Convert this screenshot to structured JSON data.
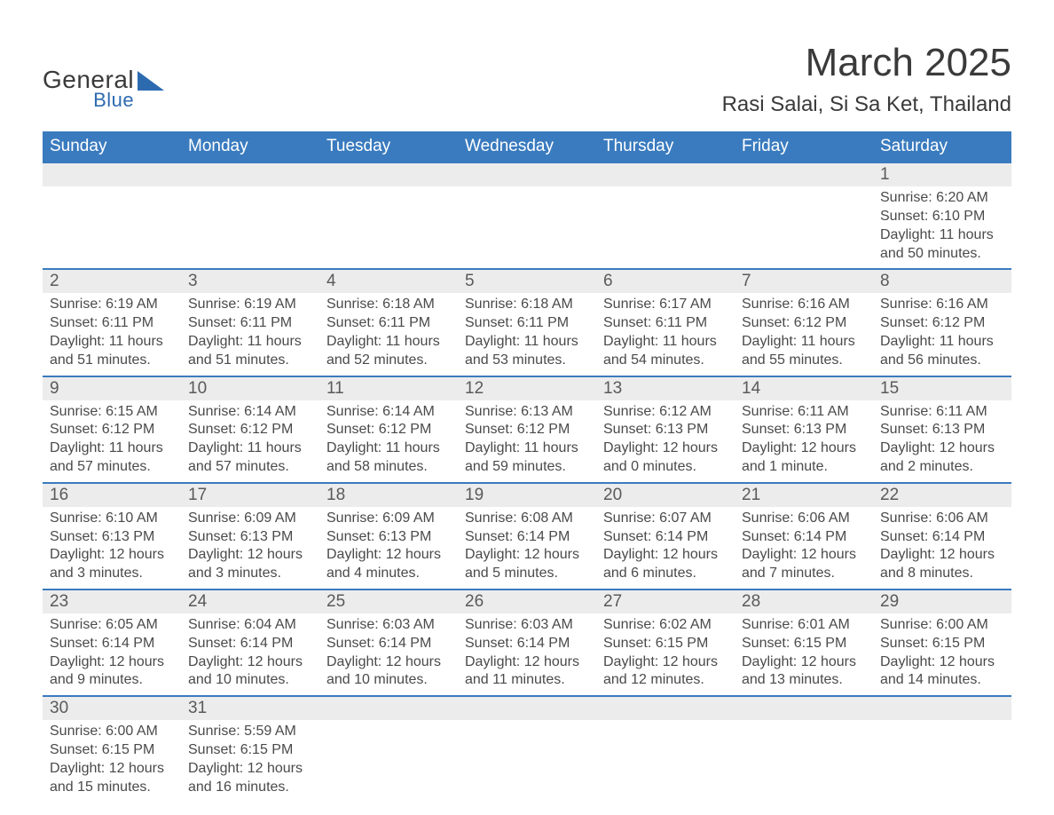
{
  "logo": {
    "text1": "General",
    "text2": "Blue",
    "brand_color": "#2d6bb0"
  },
  "title": {
    "month": "March 2025",
    "location": "Rasi Salai, Si Sa Ket, Thailand"
  },
  "colors": {
    "header_bg": "#3a7bbf",
    "header_text": "#ffffff",
    "daynum_bg": "#ececec",
    "row_border": "#3a7bbf",
    "body_text": "#4a4a4a",
    "page_bg": "#ffffff"
  },
  "typography": {
    "title_fontsize": 44,
    "location_fontsize": 24,
    "header_fontsize": 19,
    "daynum_fontsize": 19,
    "cell_fontsize": 16,
    "font_family": "Arial"
  },
  "weekdays": [
    "Sunday",
    "Monday",
    "Tuesday",
    "Wednesday",
    "Thursday",
    "Friday",
    "Saturday"
  ],
  "weeks": [
    [
      null,
      null,
      null,
      null,
      null,
      null,
      {
        "d": "1",
        "sr": "Sunrise: 6:20 AM",
        "ss": "Sunset: 6:10 PM",
        "dl1": "Daylight: 11 hours",
        "dl2": "and 50 minutes."
      }
    ],
    [
      {
        "d": "2",
        "sr": "Sunrise: 6:19 AM",
        "ss": "Sunset: 6:11 PM",
        "dl1": "Daylight: 11 hours",
        "dl2": "and 51 minutes."
      },
      {
        "d": "3",
        "sr": "Sunrise: 6:19 AM",
        "ss": "Sunset: 6:11 PM",
        "dl1": "Daylight: 11 hours",
        "dl2": "and 51 minutes."
      },
      {
        "d": "4",
        "sr": "Sunrise: 6:18 AM",
        "ss": "Sunset: 6:11 PM",
        "dl1": "Daylight: 11 hours",
        "dl2": "and 52 minutes."
      },
      {
        "d": "5",
        "sr": "Sunrise: 6:18 AM",
        "ss": "Sunset: 6:11 PM",
        "dl1": "Daylight: 11 hours",
        "dl2": "and 53 minutes."
      },
      {
        "d": "6",
        "sr": "Sunrise: 6:17 AM",
        "ss": "Sunset: 6:11 PM",
        "dl1": "Daylight: 11 hours",
        "dl2": "and 54 minutes."
      },
      {
        "d": "7",
        "sr": "Sunrise: 6:16 AM",
        "ss": "Sunset: 6:12 PM",
        "dl1": "Daylight: 11 hours",
        "dl2": "and 55 minutes."
      },
      {
        "d": "8",
        "sr": "Sunrise: 6:16 AM",
        "ss": "Sunset: 6:12 PM",
        "dl1": "Daylight: 11 hours",
        "dl2": "and 56 minutes."
      }
    ],
    [
      {
        "d": "9",
        "sr": "Sunrise: 6:15 AM",
        "ss": "Sunset: 6:12 PM",
        "dl1": "Daylight: 11 hours",
        "dl2": "and 57 minutes."
      },
      {
        "d": "10",
        "sr": "Sunrise: 6:14 AM",
        "ss": "Sunset: 6:12 PM",
        "dl1": "Daylight: 11 hours",
        "dl2": "and 57 minutes."
      },
      {
        "d": "11",
        "sr": "Sunrise: 6:14 AM",
        "ss": "Sunset: 6:12 PM",
        "dl1": "Daylight: 11 hours",
        "dl2": "and 58 minutes."
      },
      {
        "d": "12",
        "sr": "Sunrise: 6:13 AM",
        "ss": "Sunset: 6:12 PM",
        "dl1": "Daylight: 11 hours",
        "dl2": "and 59 minutes."
      },
      {
        "d": "13",
        "sr": "Sunrise: 6:12 AM",
        "ss": "Sunset: 6:13 PM",
        "dl1": "Daylight: 12 hours",
        "dl2": "and 0 minutes."
      },
      {
        "d": "14",
        "sr": "Sunrise: 6:11 AM",
        "ss": "Sunset: 6:13 PM",
        "dl1": "Daylight: 12 hours",
        "dl2": "and 1 minute."
      },
      {
        "d": "15",
        "sr": "Sunrise: 6:11 AM",
        "ss": "Sunset: 6:13 PM",
        "dl1": "Daylight: 12 hours",
        "dl2": "and 2 minutes."
      }
    ],
    [
      {
        "d": "16",
        "sr": "Sunrise: 6:10 AM",
        "ss": "Sunset: 6:13 PM",
        "dl1": "Daylight: 12 hours",
        "dl2": "and 3 minutes."
      },
      {
        "d": "17",
        "sr": "Sunrise: 6:09 AM",
        "ss": "Sunset: 6:13 PM",
        "dl1": "Daylight: 12 hours",
        "dl2": "and 3 minutes."
      },
      {
        "d": "18",
        "sr": "Sunrise: 6:09 AM",
        "ss": "Sunset: 6:13 PM",
        "dl1": "Daylight: 12 hours",
        "dl2": "and 4 minutes."
      },
      {
        "d": "19",
        "sr": "Sunrise: 6:08 AM",
        "ss": "Sunset: 6:14 PM",
        "dl1": "Daylight: 12 hours",
        "dl2": "and 5 minutes."
      },
      {
        "d": "20",
        "sr": "Sunrise: 6:07 AM",
        "ss": "Sunset: 6:14 PM",
        "dl1": "Daylight: 12 hours",
        "dl2": "and 6 minutes."
      },
      {
        "d": "21",
        "sr": "Sunrise: 6:06 AM",
        "ss": "Sunset: 6:14 PM",
        "dl1": "Daylight: 12 hours",
        "dl2": "and 7 minutes."
      },
      {
        "d": "22",
        "sr": "Sunrise: 6:06 AM",
        "ss": "Sunset: 6:14 PM",
        "dl1": "Daylight: 12 hours",
        "dl2": "and 8 minutes."
      }
    ],
    [
      {
        "d": "23",
        "sr": "Sunrise: 6:05 AM",
        "ss": "Sunset: 6:14 PM",
        "dl1": "Daylight: 12 hours",
        "dl2": "and 9 minutes."
      },
      {
        "d": "24",
        "sr": "Sunrise: 6:04 AM",
        "ss": "Sunset: 6:14 PM",
        "dl1": "Daylight: 12 hours",
        "dl2": "and 10 minutes."
      },
      {
        "d": "25",
        "sr": "Sunrise: 6:03 AM",
        "ss": "Sunset: 6:14 PM",
        "dl1": "Daylight: 12 hours",
        "dl2": "and 10 minutes."
      },
      {
        "d": "26",
        "sr": "Sunrise: 6:03 AM",
        "ss": "Sunset: 6:14 PM",
        "dl1": "Daylight: 12 hours",
        "dl2": "and 11 minutes."
      },
      {
        "d": "27",
        "sr": "Sunrise: 6:02 AM",
        "ss": "Sunset: 6:15 PM",
        "dl1": "Daylight: 12 hours",
        "dl2": "and 12 minutes."
      },
      {
        "d": "28",
        "sr": "Sunrise: 6:01 AM",
        "ss": "Sunset: 6:15 PM",
        "dl1": "Daylight: 12 hours",
        "dl2": "and 13 minutes."
      },
      {
        "d": "29",
        "sr": "Sunrise: 6:00 AM",
        "ss": "Sunset: 6:15 PM",
        "dl1": "Daylight: 12 hours",
        "dl2": "and 14 minutes."
      }
    ],
    [
      {
        "d": "30",
        "sr": "Sunrise: 6:00 AM",
        "ss": "Sunset: 6:15 PM",
        "dl1": "Daylight: 12 hours",
        "dl2": "and 15 minutes."
      },
      {
        "d": "31",
        "sr": "Sunrise: 5:59 AM",
        "ss": "Sunset: 6:15 PM",
        "dl1": "Daylight: 12 hours",
        "dl2": "and 16 minutes."
      },
      null,
      null,
      null,
      null,
      null
    ]
  ]
}
